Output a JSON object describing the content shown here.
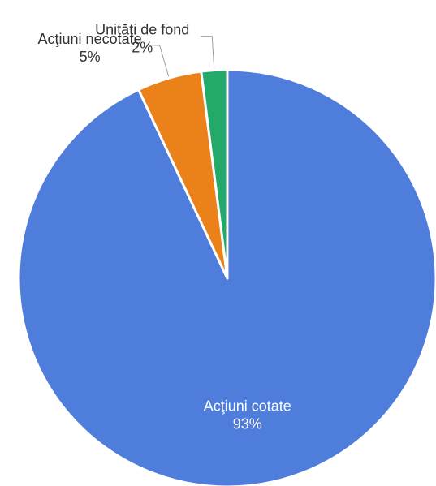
{
  "chart_data": {
    "type": "pie",
    "title": "",
    "slices": [
      {
        "label": "Acţiuni cotate",
        "value": 93,
        "value_label": "93%",
        "color": "#4e7ddb",
        "label_position": "inside"
      },
      {
        "label": "Acţiuni necotate",
        "value": 5,
        "value_label": "5%",
        "color": "#ea8119",
        "label_position": "outside"
      },
      {
        "label": "Unităţi de fond",
        "value": 2,
        "value_label": "2%",
        "color": "#23a96a",
        "label_position": "outside"
      }
    ],
    "legend": "none",
    "start_angle": "top",
    "direction": "clockwise"
  }
}
